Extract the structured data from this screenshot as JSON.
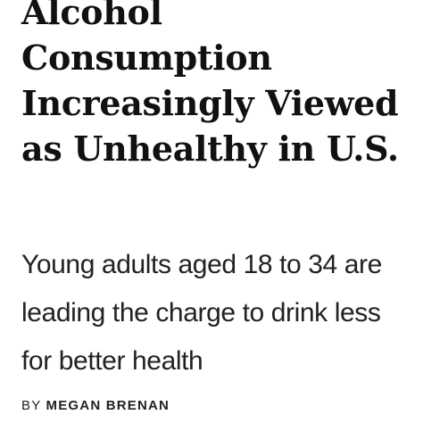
{
  "article": {
    "headline": "Alcohol Consumption Increasingly Viewed as Unhealthy in U.S.",
    "subheadline": "Young adults aged 18 to 34 are leading the charge to drink less for better health",
    "byline": {
      "prefix": "BY",
      "author": "MEGAN BRENAN"
    }
  }
}
